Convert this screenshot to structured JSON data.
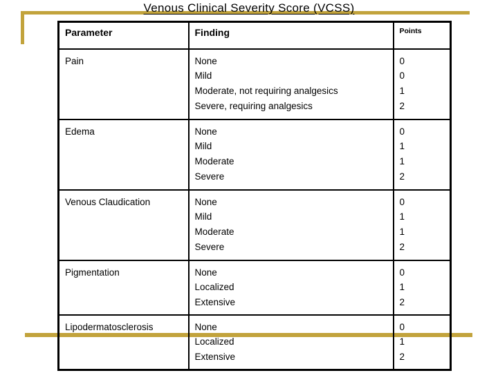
{
  "title": "Venous Clinical Severity Score (VCSS)",
  "accent_color": "#C2A33C",
  "table": {
    "headers": [
      "Parameter",
      "Finding",
      "Points"
    ],
    "rows": [
      {
        "parameter": "Pain",
        "findings": [
          "None",
          "Mild",
          "Moderate, not requiring analgesics",
          "Severe, requiring analgesics"
        ],
        "points": [
          "0",
          "0",
          "1",
          "2"
        ]
      },
      {
        "parameter": "Edema",
        "findings": [
          "None",
          "Mild",
          "Moderate",
          "Severe"
        ],
        "points": [
          "0",
          "1",
          "1",
          "2"
        ]
      },
      {
        "parameter": "Venous Claudication",
        "findings": [
          "None",
          "Mild",
          "Moderate",
          "Severe"
        ],
        "points": [
          "0",
          "1",
          "1",
          "2"
        ]
      },
      {
        "parameter": "Pigmentation",
        "findings": [
          "None",
          "Localized",
          "Extensive"
        ],
        "points": [
          "0",
          "1",
          "2"
        ]
      },
      {
        "parameter": "Lipodermatosclerosis",
        "findings": [
          "None",
          "Localized",
          "Extensive"
        ],
        "points": [
          "0",
          "1",
          "2"
        ]
      }
    ]
  }
}
